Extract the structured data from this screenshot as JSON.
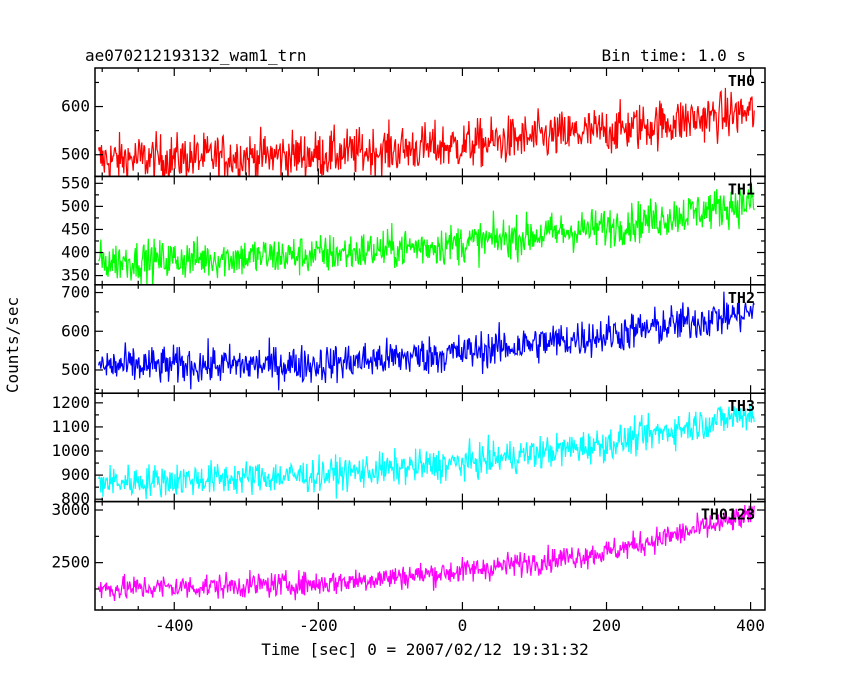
{
  "chart_data": {
    "type": "line",
    "title_left": "ae070212193132_wam1_trn",
    "title_right": "Bin time: 1.0 s",
    "xlabel": "Time [sec] 0 = 2007/02/12 19:31:32",
    "ylabel": "Counts/sec",
    "xlim": [
      -510,
      420
    ],
    "xticks": [
      -400,
      -200,
      0,
      200,
      400
    ],
    "x_range_data": [
      -505,
      405
    ],
    "grid": false,
    "panels": [
      {
        "name": "TH0",
        "color": "#ff0000",
        "ylim": [
          455,
          680
        ],
        "yticks": [
          500,
          600
        ],
        "trend": [
          [
            -500,
            490
          ],
          [
            -200,
            500
          ],
          [
            0,
            520
          ],
          [
            200,
            550
          ],
          [
            405,
            590
          ]
        ],
        "noise": 25
      },
      {
        "name": "TH1",
        "color": "#00ff00",
        "ylim": [
          330,
          565
        ],
        "yticks": [
          350,
          400,
          450,
          500,
          550
        ],
        "trend": [
          [
            -500,
            380
          ],
          [
            -200,
            395
          ],
          [
            0,
            420
          ],
          [
            200,
            455
          ],
          [
            405,
            510
          ]
        ],
        "noise": 22
      },
      {
        "name": "TH2",
        "color": "#0000ff",
        "ylim": [
          440,
          720
        ],
        "yticks": [
          500,
          600,
          700
        ],
        "trend": [
          [
            -500,
            510
          ],
          [
            -200,
            515
          ],
          [
            0,
            545
          ],
          [
            200,
            590
          ],
          [
            405,
            650
          ]
        ],
        "noise": 25
      },
      {
        "name": "TH3",
        "color": "#00ffff",
        "ylim": [
          790,
          1240
        ],
        "yticks": [
          800,
          900,
          1000,
          1100,
          1200
        ],
        "trend": [
          [
            -500,
            870
          ],
          [
            -200,
            900
          ],
          [
            0,
            950
          ],
          [
            200,
            1030
          ],
          [
            405,
            1160
          ]
        ],
        "noise": 35
      },
      {
        "name": "TH0123",
        "color": "#ff00ff",
        "ylim": [
          2050,
          3080
        ],
        "yticks": [
          2500,
          3000
        ],
        "trend": [
          [
            -500,
            2250
          ],
          [
            -200,
            2300
          ],
          [
            0,
            2420
          ],
          [
            200,
            2600
          ],
          [
            405,
            2950
          ]
        ],
        "noise": 60
      }
    ]
  }
}
